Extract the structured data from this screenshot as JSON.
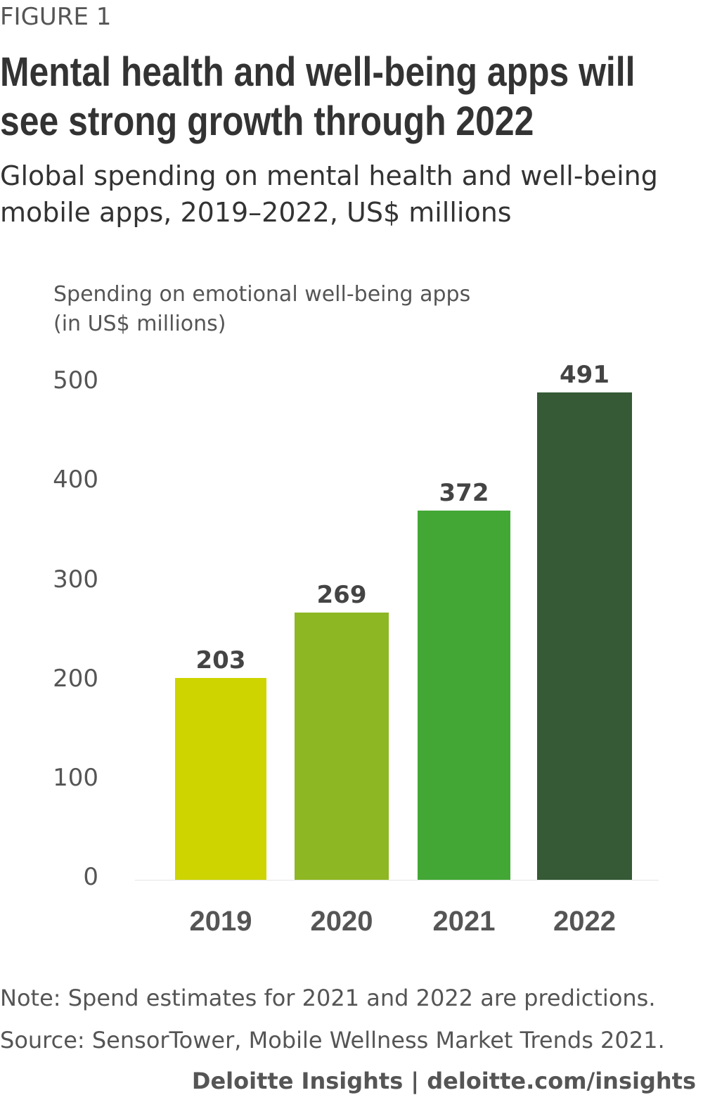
{
  "figure_label": "FIGURE 1",
  "title": "Mental health and well-being apps will see strong growth through 2022",
  "subtitle": "Global spending on mental health and well-being mobile apps, 2019–2022, US$ millions",
  "note": "Note: Spend estimates for 2021 and 2022 are predictions.",
  "source": "Source: SensorTower, Mobile Wellness Market Trends 2021.",
  "brand": "Deloitte Insights | deloitte.com/insights",
  "chart_data": {
    "type": "bar",
    "title": "Mental health and well-being apps will see strong growth through 2022",
    "ylabel": "Spending on emotional well-being apps (in US$ millions)",
    "xlabel": "",
    "categories": [
      "2019",
      "2020",
      "2021",
      "2022"
    ],
    "values": [
      203,
      269,
      372,
      491
    ],
    "colors": [
      "#cdd400",
      "#8db723",
      "#43a736",
      "#355a35"
    ],
    "ylim": [
      0,
      500
    ],
    "yticks": [
      "0",
      "100",
      "200",
      "300",
      "400",
      "500"
    ],
    "grid": false,
    "legend": "none"
  }
}
